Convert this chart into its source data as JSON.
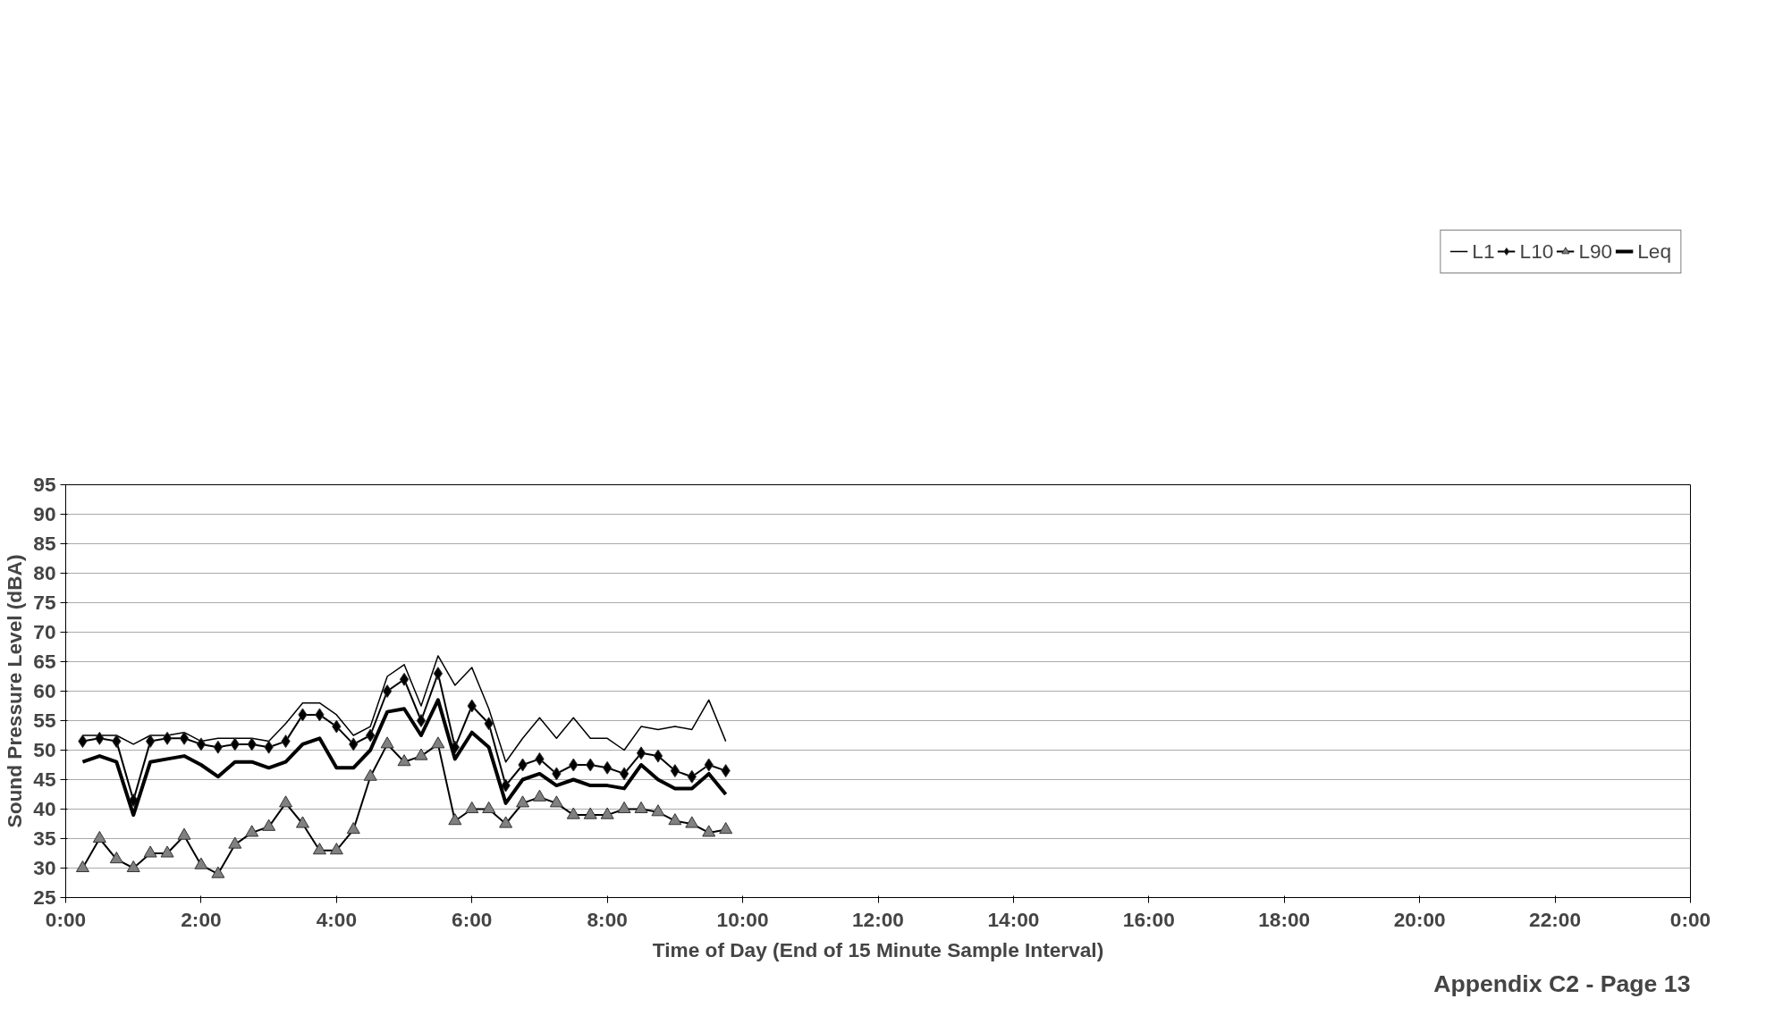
{
  "chart_data": {
    "type": "line",
    "xlabel": "Time of Day (End of 15 Minute Sample Interval)",
    "ylabel": "Sound Pressure Level (dBA)",
    "x": [
      0.25,
      0.5,
      0.75,
      1,
      1.25,
      1.5,
      1.75,
      2,
      2.25,
      2.5,
      2.75,
      3,
      3.25,
      3.5,
      3.75,
      4,
      4.25,
      4.5,
      4.75,
      5,
      5.25,
      5.5,
      5.75,
      6,
      6.25,
      6.5,
      6.75,
      7,
      7.25,
      7.5,
      7.75,
      8,
      8.25,
      8.5,
      8.75,
      9,
      9.25,
      9.5,
      9.75
    ],
    "series": [
      {
        "name": "L1",
        "color": "#000000",
        "marker": "none",
        "values": [
          52.5,
          52.5,
          52.5,
          51,
          52.5,
          52.5,
          53,
          51.5,
          52,
          52,
          52,
          51.5,
          54.5,
          58,
          58,
          56,
          52.5,
          54,
          62.5,
          64.5,
          57.5,
          66,
          61,
          64,
          57,
          48,
          52,
          55.5,
          52,
          55.5,
          52,
          52,
          50,
          54,
          53.5,
          54,
          53.5,
          58.5,
          51.5
        ]
      },
      {
        "name": "L10",
        "color": "#000000",
        "marker": "diamond",
        "values": [
          51.5,
          52,
          51.5,
          41.5,
          51.5,
          52,
          52,
          51,
          50.5,
          51,
          51,
          50.5,
          51.5,
          56,
          56,
          54,
          51,
          52.5,
          60,
          62,
          55,
          63,
          50.5,
          57.5,
          54.5,
          44,
          47.5,
          48.5,
          46,
          47.5,
          47.5,
          47,
          46,
          49.5,
          49,
          46.5,
          45.5,
          47.5,
          46.5
        ]
      },
      {
        "name": "L90",
        "color": "#808080",
        "marker": "triangle",
        "values": [
          30,
          35,
          31.5,
          30,
          32.5,
          32.5,
          35.5,
          30.5,
          29,
          34,
          36,
          37,
          41,
          37.5,
          33,
          33,
          36.5,
          45.5,
          51,
          48,
          49,
          51,
          38,
          40,
          40,
          37.5,
          41,
          42,
          41,
          39,
          39,
          39,
          40,
          40,
          39.5,
          38,
          37.5,
          36,
          36.5
        ]
      },
      {
        "name": "Leq",
        "color": "#000000",
        "marker": "none",
        "values": [
          48,
          49,
          48,
          39,
          48,
          48.5,
          49,
          47.5,
          45.5,
          48,
          48,
          47,
          48,
          51,
          52,
          47,
          47,
          50,
          56.5,
          57,
          52.5,
          58.5,
          48.5,
          53,
          50.5,
          41,
          45,
          46,
          44,
          45,
          44,
          44,
          43.5,
          47.5,
          45,
          43.5,
          43.5,
          46,
          42.5
        ]
      }
    ],
    "xlim": [
      0,
      24
    ],
    "xticks": [
      {
        "value": 0,
        "label": "0:00"
      },
      {
        "value": 2,
        "label": "2:00"
      },
      {
        "value": 4,
        "label": "4:00"
      },
      {
        "value": 6,
        "label": "6:00"
      },
      {
        "value": 8,
        "label": "8:00"
      },
      {
        "value": 10,
        "label": "10:00"
      },
      {
        "value": 12,
        "label": "12:00"
      },
      {
        "value": 14,
        "label": "14:00"
      },
      {
        "value": 16,
        "label": "16:00"
      },
      {
        "value": 18,
        "label": "18:00"
      },
      {
        "value": 20,
        "label": "20:00"
      },
      {
        "value": 22,
        "label": "22:00"
      },
      {
        "value": 24,
        "label": "0:00"
      }
    ],
    "ylim": [
      25,
      95
    ],
    "yticks": [
      25,
      30,
      35,
      40,
      45,
      50,
      55,
      60,
      65,
      70,
      75,
      80,
      85,
      90,
      95
    ],
    "grid": "y",
    "legend": "top",
    "annotations": [
      "Appendix C2 - Page 13"
    ]
  }
}
